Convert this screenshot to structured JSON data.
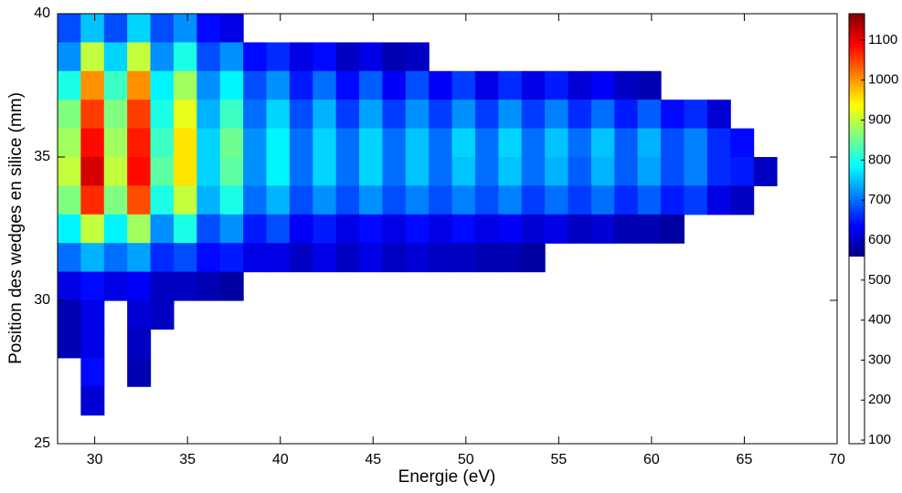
{
  "chart_data": {
    "type": "heatmap",
    "xlabel": "Energie (eV)",
    "ylabel": "Position des wedges en silice (mm)",
    "xlim": [
      28,
      70
    ],
    "xticks": [
      30,
      35,
      40,
      45,
      50,
      55,
      60,
      65,
      70
    ],
    "ylim": [
      25,
      40
    ],
    "yticks": [
      25,
      30,
      35,
      40
    ],
    "x_edges": [
      28,
      29.25,
      30.5,
      31.75,
      33,
      34.25,
      35.5,
      36.75,
      38,
      39.25,
      40.5,
      41.75,
      43,
      44.25,
      45.5,
      46.75,
      48,
      49.25,
      50.5,
      51.75,
      53,
      54.25,
      55.5,
      56.75,
      58,
      59.25,
      60.5,
      61.75,
      63,
      64.25,
      65.5,
      66.75,
      68
    ],
    "y_edges": [
      40,
      39,
      38,
      37,
      36,
      35,
      34,
      33,
      32,
      31,
      30,
      29,
      28,
      27,
      26
    ],
    "values": [
      [
        680,
        750,
        680,
        760,
        680,
        720,
        640,
        620,
        null,
        null,
        null,
        null,
        null,
        null,
        null,
        null,
        null,
        null,
        null,
        null,
        null,
        null,
        null,
        null,
        null,
        null,
        null,
        null,
        null,
        null,
        null,
        null
      ],
      [
        720,
        900,
        760,
        900,
        720,
        800,
        680,
        720,
        640,
        660,
        620,
        640,
        600,
        620,
        590,
        600,
        null,
        null,
        null,
        null,
        null,
        null,
        null,
        null,
        null,
        null,
        null,
        null,
        null,
        null,
        null,
        null
      ],
      [
        800,
        1000,
        820,
        1000,
        780,
        880,
        720,
        780,
        680,
        720,
        650,
        700,
        640,
        690,
        630,
        680,
        630,
        670,
        620,
        660,
        620,
        650,
        610,
        630,
        600,
        590,
        null,
        null,
        null,
        null,
        null,
        null
      ],
      [
        860,
        1050,
        860,
        1050,
        800,
        920,
        740,
        820,
        700,
        760,
        680,
        740,
        670,
        730,
        670,
        720,
        670,
        720,
        670,
        720,
        670,
        710,
        660,
        700,
        650,
        690,
        640,
        660,
        610,
        null,
        null,
        null
      ],
      [
        880,
        1080,
        880,
        1070,
        820,
        950,
        760,
        850,
        720,
        780,
        700,
        760,
        700,
        760,
        700,
        750,
        700,
        760,
        700,
        760,
        700,
        750,
        700,
        750,
        690,
        740,
        680,
        710,
        660,
        640,
        null,
        null
      ],
      [
        900,
        1110,
        900,
        1080,
        840,
        950,
        760,
        840,
        720,
        780,
        700,
        760,
        700,
        760,
        700,
        750,
        700,
        750,
        700,
        750,
        700,
        740,
        690,
        740,
        690,
        730,
        680,
        710,
        660,
        650,
        600,
        null
      ],
      [
        860,
        1060,
        860,
        1040,
        800,
        900,
        740,
        800,
        700,
        740,
        680,
        720,
        680,
        720,
        680,
        710,
        680,
        710,
        680,
        710,
        670,
        700,
        670,
        700,
        660,
        690,
        650,
        670,
        620,
        600,
        null,
        null
      ],
      [
        780,
        900,
        780,
        880,
        720,
        800,
        680,
        720,
        650,
        680,
        630,
        650,
        620,
        640,
        620,
        640,
        620,
        640,
        620,
        630,
        610,
        620,
        600,
        610,
        590,
        590,
        580,
        null,
        null,
        null,
        null,
        null
      ],
      [
        700,
        740,
        700,
        730,
        660,
        680,
        640,
        650,
        620,
        620,
        600,
        620,
        600,
        620,
        600,
        610,
        600,
        600,
        590,
        590,
        580,
        null,
        null,
        null,
        null,
        null,
        null,
        null,
        null,
        null,
        null,
        null
      ],
      [
        620,
        640,
        620,
        630,
        600,
        600,
        590,
        580,
        null,
        null,
        null,
        null,
        null,
        null,
        null,
        null,
        null,
        null,
        null,
        null,
        null,
        null,
        null,
        null,
        null,
        null,
        null,
        null,
        null,
        null,
        null,
        null
      ],
      [
        590,
        620,
        null,
        610,
        600,
        null,
        null,
        null,
        null,
        null,
        null,
        null,
        null,
        null,
        null,
        null,
        null,
        null,
        null,
        null,
        null,
        null,
        null,
        null,
        null,
        null,
        null,
        null,
        null,
        null,
        null,
        null
      ],
      [
        590,
        620,
        null,
        600,
        null,
        null,
        null,
        null,
        null,
        null,
        null,
        null,
        null,
        null,
        null,
        null,
        null,
        null,
        null,
        null,
        null,
        null,
        null,
        null,
        null,
        null,
        null,
        null,
        null,
        null,
        null,
        null
      ],
      [
        null,
        640,
        null,
        590,
        null,
        null,
        null,
        null,
        null,
        null,
        null,
        null,
        null,
        null,
        null,
        null,
        null,
        null,
        null,
        null,
        null,
        null,
        null,
        null,
        null,
        null,
        null,
        null,
        null,
        null,
        null,
        null
      ],
      [
        null,
        610,
        null,
        null,
        null,
        null,
        null,
        null,
        null,
        null,
        null,
        null,
        null,
        null,
        null,
        null,
        null,
        null,
        null,
        null,
        null,
        null,
        null,
        null,
        null,
        null,
        null,
        null,
        null,
        null,
        null,
        null
      ]
    ],
    "colormap": "jet",
    "cmin": 560,
    "cmax": 1160,
    "colorbar_lim": [
      91,
      1166
    ],
    "colorbar_ticks": [
      100,
      200,
      300,
      400,
      500,
      600,
      700,
      800,
      900,
      1000,
      1100
    ]
  }
}
